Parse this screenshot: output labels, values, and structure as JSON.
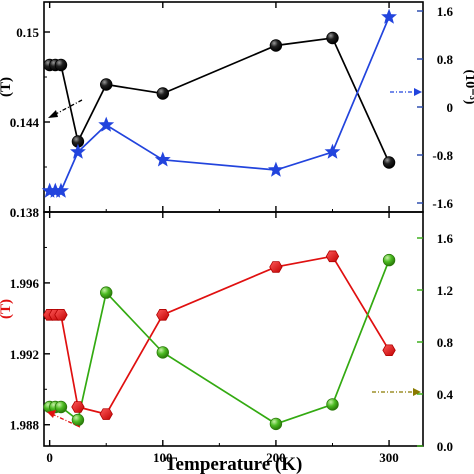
{
  "chart_data": [
    {
      "type": "line",
      "panel": "top",
      "x": [
        0,
        5,
        10,
        25,
        50,
        100,
        200,
        250,
        300
      ],
      "xlabel": "",
      "xlim": [
        -5,
        330
      ],
      "series": [
        {
          "name": "",
          "axis": "left",
          "color": "#000000",
          "marker": "sphere",
          "values": [
            0.1478,
            0.1478,
            0.1478,
            0.1427,
            0.1465,
            0.1459,
            0.1491,
            0.1496,
            0.1413
          ]
        },
        {
          "name": "",
          "axis": "right",
          "color": "#2244dd",
          "marker": "star",
          "values": [
            -1.4,
            -1.4,
            -1.4,
            -0.75,
            -0.3,
            -0.88,
            -1.05,
            -0.75,
            1.5
          ]
        }
      ],
      "y_left": {
        "ylabel": "(T)",
        "ylim": [
          0.138,
          0.152
        ],
        "ticks": [
          "0.138",
          "0.144",
          "0.15"
        ],
        "tick_values": [
          0.138,
          0.144,
          0.15
        ],
        "color": "#000000"
      },
      "y_right": {
        "ylabel": "(10⁻³)",
        "ylim": [
          -1.75,
          1.75
        ],
        "ticks": [
          "-1.6",
          "-0.8",
          "0",
          "0.8",
          "1.6"
        ],
        "tick_values": [
          -1.6,
          -0.8,
          0,
          0.8,
          1.6
        ],
        "color": "#2244aa"
      }
    },
    {
      "type": "line",
      "panel": "bottom",
      "x": [
        0,
        5,
        10,
        25,
        50,
        100,
        200,
        250,
        300
      ],
      "xlabel": "Temperature (K)",
      "xlim": [
        -5,
        330
      ],
      "xticks": [
        "0",
        "100",
        "200",
        "300"
      ],
      "xtick_values": [
        0,
        100,
        200,
        300
      ],
      "series": [
        {
          "name": "",
          "axis": "left",
          "color": "#e01010",
          "marker": "hexagon",
          "values": [
            1.9942,
            1.9942,
            1.9942,
            1.989,
            1.9886,
            1.9942,
            1.9969,
            1.9975,
            1.9922
          ]
        },
        {
          "name": "",
          "axis": "right",
          "color": "#33aa11",
          "marker": "sphere",
          "values": [
            0.3,
            0.3,
            0.3,
            0.2,
            1.18,
            0.72,
            0.17,
            0.32,
            1.43
          ]
        }
      ],
      "y_left": {
        "ylabel": "(T)",
        "ylim": [
          1.9868,
          2.0
        ],
        "ticks": [
          "1.988",
          "1.992",
          "1.996"
        ],
        "tick_values": [
          1.988,
          1.992,
          1.996
        ],
        "color": "#e01010"
      },
      "y_right": {
        "ylabel": "",
        "ylim": [
          0.0,
          1.8
        ],
        "ticks": [
          "0.0",
          "0.4",
          "0.8",
          "1.2",
          "1.6"
        ],
        "tick_values": [
          0.0,
          0.4,
          0.8,
          1.2,
          1.6
        ],
        "color": "#33aa11"
      }
    }
  ]
}
